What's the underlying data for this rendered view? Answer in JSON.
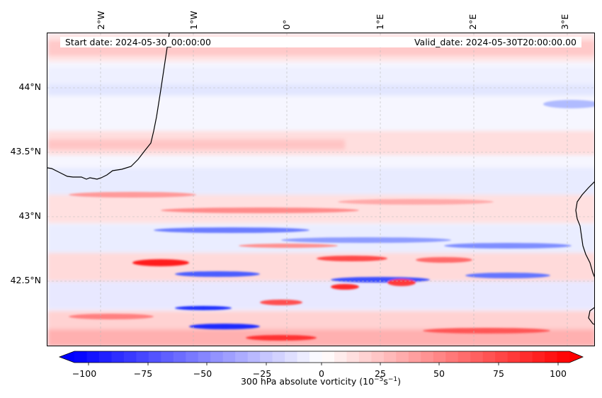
{
  "header": {
    "start_date": "Start date: 2024-05-30_00:00:00",
    "valid_date": "Valid_date: 2024-05-30T20:00:00.00"
  },
  "map": {
    "lon_labels": [
      "2°W",
      "1°W",
      "0°",
      "1°E",
      "2°E",
      "3°E"
    ],
    "lat_labels": [
      "44°N",
      "43.5°N",
      "43°N",
      "42.5°N"
    ],
    "lon_range": [
      -2.6,
      3.3
    ],
    "lat_range": [
      42.0,
      44.42
    ]
  },
  "colorbar": {
    "ticks": [
      "−100",
      "−75",
      "−50",
      "−25",
      "0",
      "25",
      "50",
      "75",
      "100"
    ],
    "label_main": "300 hPa absolute vorticity (10",
    "label_exp1": "−5",
    "label_mid": "s",
    "label_exp2": "−1",
    "label_end": ")",
    "range": [
      -100,
      100
    ],
    "min_color": "#0000ff",
    "mid_color": "#ffffff",
    "max_color": "#ff0000"
  }
}
